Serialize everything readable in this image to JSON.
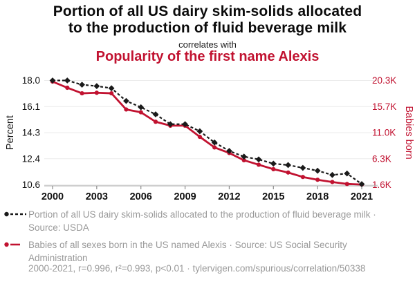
{
  "header": {
    "title_line1": "Portion of all US dairy skim-solids allocated",
    "title_line2": "to the production of fluid beverage milk",
    "connector": "correlates with",
    "subtitle": "Popularity of the first name Alexis"
  },
  "colors": {
    "series_black": "#1a1a1a",
    "series_red": "#c11230",
    "title_red": "#c11230",
    "gridline": "#ebebeb",
    "axis_line": "#b0b0b0",
    "tick_mark": "#8a8a8a",
    "axis_text": "#111111",
    "legend_text": "#999999"
  },
  "chart_data": {
    "type": "line",
    "title": "Portion of all US dairy skim-solids allocated to the production of fluid beverage milk correlates with Popularity of the first name Alexis",
    "x": [
      2000,
      2001,
      2002,
      2003,
      2004,
      2005,
      2006,
      2007,
      2008,
      2009,
      2010,
      2011,
      2012,
      2013,
      2014,
      2015,
      2016,
      2017,
      2018,
      2019,
      2020,
      2021
    ],
    "x_ticks": [
      2000,
      2003,
      2006,
      2009,
      2012,
      2015,
      2018,
      2021
    ],
    "grid": true,
    "left_axis": {
      "label": "Percent",
      "range": [
        10.6,
        18.0
      ],
      "tick_labels": [
        "18.0",
        "16.1",
        "14.3",
        "12.4",
        "10.6"
      ]
    },
    "right_axis": {
      "label": "Babies born",
      "range": [
        1.6,
        20.3
      ],
      "tick_labels": [
        "20.3K",
        "15.7K",
        "11.0K",
        "6.3K",
        "1.6K"
      ]
    },
    "series": [
      {
        "name": "Portion of all US dairy skim-solids allocated to the production of fluid beverage milk",
        "axis": "left",
        "units": "percent",
        "color": "#1a1a1a",
        "line_style": "dashed",
        "marker": "diamond",
        "values": [
          18.0,
          18.0,
          17.7,
          17.6,
          17.45,
          16.55,
          16.1,
          15.6,
          14.9,
          14.9,
          14.4,
          13.6,
          13.0,
          12.6,
          12.4,
          12.1,
          12.0,
          11.8,
          11.6,
          11.3,
          11.4,
          10.65
        ]
      },
      {
        "name": "Babies of all sexes born in the US named Alexis",
        "axis": "right",
        "units": "thousands of babies",
        "color": "#c11230",
        "line_style": "solid",
        "marker": "circle",
        "values": [
          20.1,
          19.0,
          18.0,
          18.1,
          18.0,
          15.1,
          14.6,
          12.9,
          12.2,
          12.2,
          10.2,
          8.3,
          7.3,
          6.0,
          5.2,
          4.4,
          3.8,
          3.0,
          2.5,
          2.1,
          1.75,
          1.65
        ]
      }
    ]
  },
  "legend": {
    "items": [
      {
        "label": "Portion of all US dairy skim-solids allocated to the production of fluid beverage milk · Source: USDA"
      },
      {
        "label": "Babies of all sexes born in the US named Alexis · Source: US Social Security Administration"
      }
    ],
    "footnote": "2000-2021, r=0.996, r²=0.993, p<0.01 · tylervigen.com/spurious/correlation/50338"
  }
}
